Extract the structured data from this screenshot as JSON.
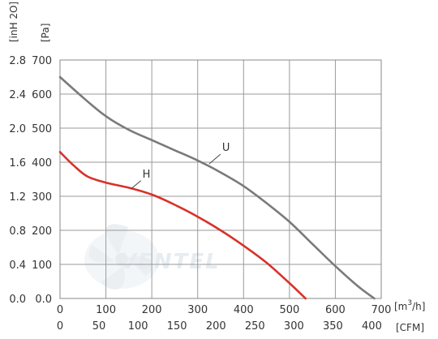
{
  "chart_data": {
    "type": "line",
    "x": {
      "label": "[m³/h]",
      "label_main": "[m",
      "label_sup": "3",
      "label_tail": "/h]",
      "range": [
        0,
        700
      ],
      "ticks": [
        "0",
        "100",
        "200",
        "300",
        "400",
        "500",
        "600",
        "700"
      ]
    },
    "x2": {
      "label": "[CFM]",
      "ticks": [
        "0",
        "50",
        "100",
        "150",
        "200",
        "250",
        "300",
        "350",
        "400"
      ]
    },
    "y": {
      "label": "[Pa]",
      "range": [
        0,
        700
      ],
      "ticks": [
        "0.0",
        "100",
        "200",
        "300",
        "400",
        "500",
        "600",
        "700"
      ]
    },
    "y2": {
      "label": "[inH 2O]",
      "ticks": [
        "0.0",
        "0.4",
        "0.8",
        "1.2",
        "1.6",
        "2.0",
        "2.4",
        "2.8"
      ]
    },
    "grid": true,
    "watermark": "VENTEL",
    "series": [
      {
        "name": "U",
        "color": "#7a7a7a",
        "points": [
          [
            0,
            650
          ],
          [
            50,
            590
          ],
          [
            100,
            535
          ],
          [
            150,
            495
          ],
          [
            200,
            465
          ],
          [
            250,
            435
          ],
          [
            300,
            405
          ],
          [
            350,
            370
          ],
          [
            400,
            330
          ],
          [
            450,
            280
          ],
          [
            500,
            225
          ],
          [
            550,
            160
          ],
          [
            600,
            95
          ],
          [
            650,
            35
          ],
          [
            685,
            0
          ]
        ]
      },
      {
        "name": "H",
        "color": "#d8322a",
        "points": [
          [
            0,
            430
          ],
          [
            30,
            390
          ],
          [
            60,
            358
          ],
          [
            100,
            340
          ],
          [
            150,
            325
          ],
          [
            200,
            305
          ],
          [
            250,
            275
          ],
          [
            300,
            240
          ],
          [
            350,
            200
          ],
          [
            400,
            155
          ],
          [
            450,
            105
          ],
          [
            500,
            45
          ],
          [
            535,
            0
          ]
        ]
      }
    ]
  }
}
